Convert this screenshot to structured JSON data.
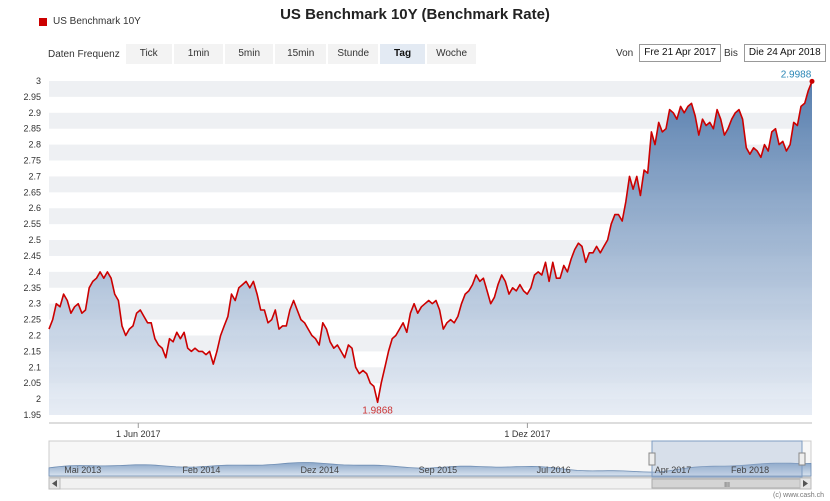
{
  "chart_data": {
    "type": "area",
    "title": "US Benchmark 10Y (Benchmark Rate)",
    "series": [
      {
        "name": "US Benchmark 10Y",
        "color": "#cc0000",
        "fill_top": "#5b82b2",
        "fill_bottom": "#e8eef6",
        "values": [
          2.22,
          2.25,
          2.3,
          2.29,
          2.33,
          2.31,
          2.27,
          2.29,
          2.3,
          2.27,
          2.28,
          2.35,
          2.37,
          2.38,
          2.4,
          2.38,
          2.4,
          2.38,
          2.33,
          2.31,
          2.23,
          2.2,
          2.22,
          2.23,
          2.27,
          2.28,
          2.26,
          2.24,
          2.24,
          2.19,
          2.17,
          2.16,
          2.13,
          2.19,
          2.18,
          2.21,
          2.19,
          2.21,
          2.16,
          2.15,
          2.16,
          2.15,
          2.15,
          2.14,
          2.15,
          2.11,
          2.15,
          2.2,
          2.23,
          2.26,
          2.33,
          2.31,
          2.35,
          2.36,
          2.37,
          2.35,
          2.37,
          2.33,
          2.28,
          2.28,
          2.24,
          2.25,
          2.28,
          2.22,
          2.23,
          2.23,
          2.28,
          2.31,
          2.28,
          2.25,
          2.24,
          2.22,
          2.2,
          2.19,
          2.17,
          2.24,
          2.22,
          2.18,
          2.16,
          2.17,
          2.15,
          2.13,
          2.17,
          2.16,
          2.1,
          2.08,
          2.09,
          2.08,
          2.05,
          2.04,
          1.99,
          2.05,
          2.1,
          2.15,
          2.19,
          2.2,
          2.22,
          2.24,
          2.21,
          2.27,
          2.3,
          2.27,
          2.29,
          2.3,
          2.31,
          2.3,
          2.31,
          2.28,
          2.22,
          2.24,
          2.25,
          2.24,
          2.26,
          2.3,
          2.33,
          2.34,
          2.36,
          2.39,
          2.37,
          2.38,
          2.34,
          2.3,
          2.32,
          2.36,
          2.39,
          2.37,
          2.33,
          2.35,
          2.34,
          2.36,
          2.34,
          2.33,
          2.35,
          2.39,
          2.4,
          2.39,
          2.43,
          2.37,
          2.43,
          2.38,
          2.38,
          2.42,
          2.4,
          2.44,
          2.47,
          2.49,
          2.48,
          2.43,
          2.46,
          2.46,
          2.48,
          2.46,
          2.48,
          2.5,
          2.55,
          2.58,
          2.58,
          2.56,
          2.62,
          2.7,
          2.66,
          2.7,
          2.64,
          2.72,
          2.71,
          2.84,
          2.8,
          2.87,
          2.84,
          2.85,
          2.91,
          2.9,
          2.88,
          2.92,
          2.9,
          2.92,
          2.93,
          2.89,
          2.83,
          2.88,
          2.86,
          2.87,
          2.85,
          2.91,
          2.88,
          2.83,
          2.85,
          2.88,
          2.9,
          2.91,
          2.88,
          2.79,
          2.77,
          2.79,
          2.78,
          2.76,
          2.8,
          2.78,
          2.84,
          2.85,
          2.8,
          2.81,
          2.78,
          2.8,
          2.87,
          2.86,
          2.92,
          2.93,
          2.97,
          2.9988
        ]
      }
    ],
    "x_ticks": [
      "1 Jun 2017",
      "1 Dez 2017"
    ],
    "ylim": [
      1.95,
      3.0
    ],
    "y_ticks": [
      "3",
      "2.95",
      "2.9",
      "2.85",
      "2.8",
      "2.75",
      "2.7",
      "2.65",
      "2.6",
      "2.55",
      "2.5",
      "2.45",
      "2.4",
      "2.35",
      "2.3",
      "2.25",
      "2.2",
      "2.15",
      "2.1",
      "2.05",
      "2",
      "1.95"
    ],
    "annotations": [
      "2.9988",
      "1.9868"
    ],
    "grid": "horizontal bands",
    "legend": "top-left"
  },
  "header": {
    "title": "US Benchmark 10Y (Benchmark Rate)",
    "legend_label": "US Benchmark 10Y"
  },
  "frequency": {
    "label": "Daten Frequenz",
    "buttons": [
      "Tick",
      "1min",
      "5min",
      "15min",
      "Stunde",
      "Tag",
      "Woche"
    ],
    "selected": "Tag"
  },
  "range": {
    "from_label": "Von",
    "from_value": "Fre 21 Apr 2017",
    "to_label": "Bis",
    "to_value": "Die 24 Apr 2018"
  },
  "navigator": {
    "labels": [
      "Mai 2013",
      "Feb 2014",
      "Dez 2014",
      "Sep 2015",
      "Jul 2016",
      "Apr 2017",
      "Feb 2018"
    ],
    "handle_glyph": "III"
  },
  "credit": "(c) www.cash.ch"
}
